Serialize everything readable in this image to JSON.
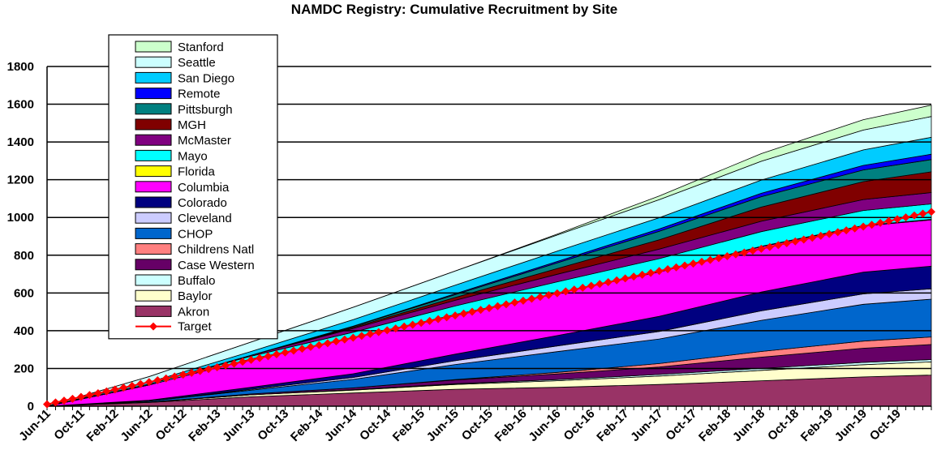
{
  "chart_data": {
    "type": "area",
    "title": "NAMDC Registry: Cumulative Recruitment by Site",
    "xlabel": "",
    "ylabel": "",
    "ylim": [
      0,
      1800
    ],
    "yticks": [
      0,
      200,
      400,
      600,
      800,
      1000,
      1200,
      1400,
      1600,
      1800
    ],
    "xlim": [
      "Jun-11",
      "Feb-20"
    ],
    "xticks": [
      "Jun-11",
      "Oct-11",
      "Feb-12",
      "Jun-12",
      "Oct-12",
      "Feb-13",
      "Jun-13",
      "Oct-13",
      "Feb-14",
      "Jun-14",
      "Oct-14",
      "Feb-15",
      "Jun-15",
      "Oct-15",
      "Feb-16",
      "Jun-16",
      "Oct-16",
      "Feb-17",
      "Jun-17",
      "Oct-17",
      "Feb-18",
      "Jun-18",
      "Oct-18",
      "Feb-19",
      "Jun-19",
      "Oct-19"
    ],
    "grid": "horizontal",
    "legend_position": "top-left",
    "x": [
      "Jun-11",
      "Jun-12",
      "Jun-13",
      "Jun-14",
      "Jun-15",
      "Jun-16",
      "Jun-17",
      "Jun-18",
      "Jun-19",
      "Feb-20"
    ],
    "series": [
      {
        "name": "Akron",
        "color": "#993366",
        "values": [
          0,
          20,
          50,
          70,
          90,
          100,
          115,
          135,
          155,
          165
        ]
      },
      {
        "name": "Baylor",
        "color": "#ffffcc",
        "values": [
          0,
          2,
          10,
          15,
          25,
          35,
          45,
          55,
          65,
          70
        ]
      },
      {
        "name": "Buffalo",
        "color": "#ccffff",
        "values": [
          0,
          0,
          0,
          2,
          4,
          6,
          8,
          10,
          12,
          12
        ]
      },
      {
        "name": "Case Western",
        "color": "#660066",
        "values": [
          0,
          0,
          5,
          10,
          20,
          30,
          40,
          60,
          75,
          80
        ]
      },
      {
        "name": "Childrens Natl",
        "color": "#ff8080",
        "values": [
          0,
          0,
          0,
          0,
          2,
          8,
          18,
          30,
          38,
          40
        ]
      },
      {
        "name": "CHOP",
        "color": "#0066cc",
        "values": [
          0,
          5,
          20,
          45,
          80,
          110,
          130,
          165,
          195,
          200
        ]
      },
      {
        "name": "Cleveland",
        "color": "#ccccff",
        "values": [
          0,
          0,
          5,
          10,
          20,
          30,
          40,
          50,
          55,
          55
        ]
      },
      {
        "name": "Colorado",
        "color": "#000080",
        "values": [
          0,
          5,
          10,
          20,
          35,
          55,
          80,
          100,
          115,
          120
        ]
      },
      {
        "name": "Columbia",
        "color": "#ff00ff",
        "values": [
          0,
          80,
          150,
          190,
          210,
          225,
          235,
          240,
          245,
          245
        ]
      },
      {
        "name": "Florida",
        "color": "#ffff00",
        "values": [
          0,
          0,
          0,
          0,
          0,
          0,
          1,
          2,
          2,
          3
        ]
      },
      {
        "name": "Mayo",
        "color": "#00ffff",
        "values": [
          0,
          5,
          15,
          30,
          45,
          60,
          70,
          78,
          80,
          82
        ]
      },
      {
        "name": "McMaster",
        "color": "#800080",
        "values": [
          0,
          0,
          5,
          20,
          30,
          40,
          50,
          55,
          58,
          60
        ]
      },
      {
        "name": "MGH",
        "color": "#800000",
        "values": [
          0,
          0,
          0,
          5,
          15,
          30,
          50,
          75,
          95,
          110
        ]
      },
      {
        "name": "Pittsburgh",
        "color": "#008080",
        "values": [
          0,
          0,
          0,
          5,
          15,
          30,
          45,
          55,
          62,
          65
        ]
      },
      {
        "name": "Remote",
        "color": "#0000ff",
        "values": [
          0,
          0,
          0,
          2,
          5,
          8,
          12,
          18,
          24,
          28
        ]
      },
      {
        "name": "San Diego",
        "color": "#00ccff",
        "values": [
          0,
          10,
          20,
          35,
          45,
          55,
          60,
          70,
          82,
          90
        ]
      },
      {
        "name": "Seattle",
        "color": "#ccffff",
        "values": [
          0,
          30,
          50,
          65,
          75,
          85,
          95,
          100,
          105,
          110
        ]
      },
      {
        "name": "Stanford",
        "color": "#ccffcc",
        "values": [
          0,
          0,
          0,
          0,
          0,
          5,
          20,
          40,
          55,
          60
        ]
      }
    ],
    "target": {
      "name": "Target",
      "color": "#ff0000",
      "start": [
        "Jun-11",
        10
      ],
      "end": [
        "Feb-20",
        1030
      ]
    }
  }
}
